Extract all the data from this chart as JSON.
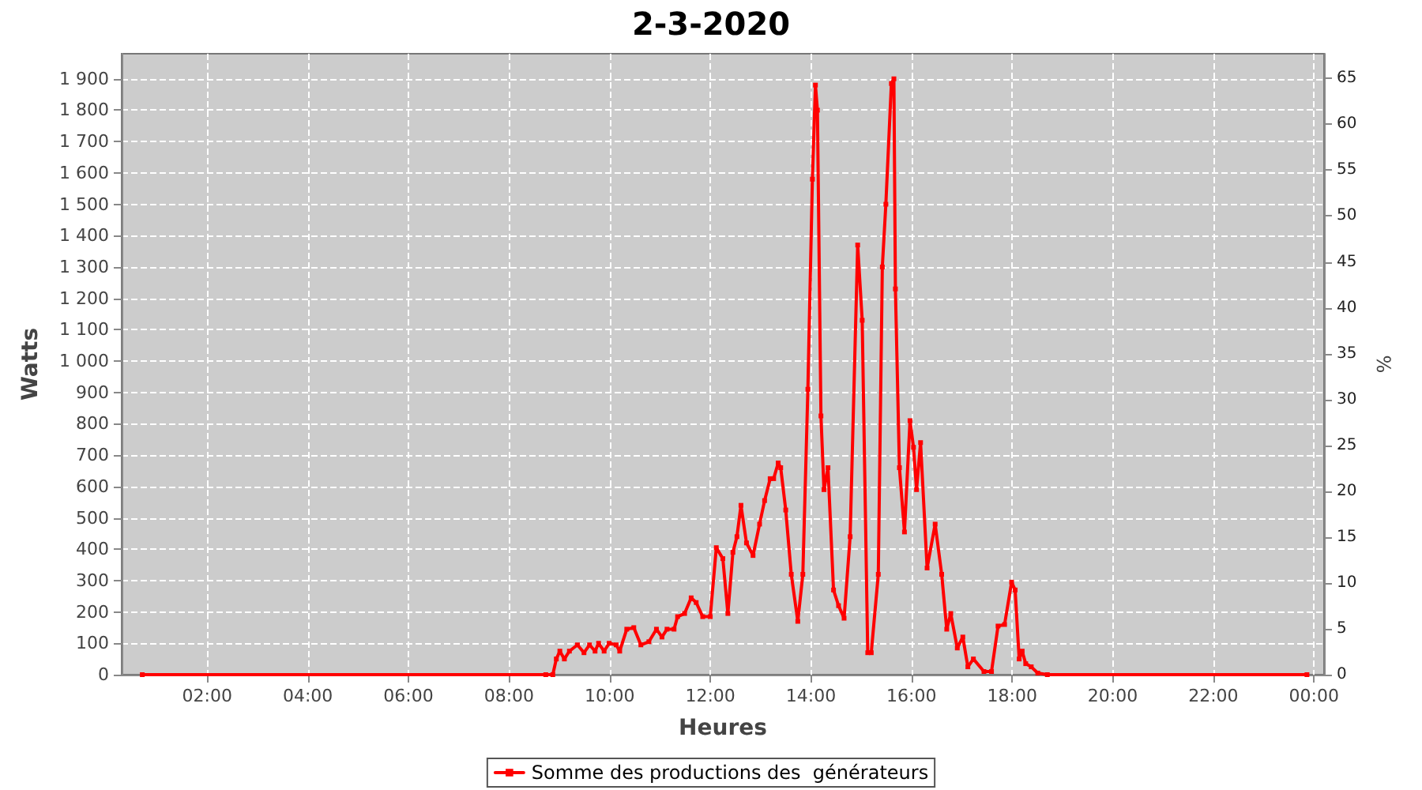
{
  "chart_data": {
    "type": "line",
    "title": "2-3-2020",
    "xlabel": "Heures",
    "ylabel": "Watts",
    "y2label": "%",
    "xlim": [
      0.3,
      24.2
    ],
    "xticks": [
      {
        "value": 2,
        "label": "02:00"
      },
      {
        "value": 4,
        "label": "04:00"
      },
      {
        "value": 6,
        "label": "06:00"
      },
      {
        "value": 8,
        "label": "08:00"
      },
      {
        "value": 10,
        "label": "10:00"
      },
      {
        "value": 12,
        "label": "12:00"
      },
      {
        "value": 14,
        "label": "14:00"
      },
      {
        "value": 16,
        "label": "16:00"
      },
      {
        "value": 18,
        "label": "18:00"
      },
      {
        "value": 20,
        "label": "20:00"
      },
      {
        "value": 22,
        "label": "22:00"
      },
      {
        "value": 24,
        "label": "00:00"
      }
    ],
    "ylim": [
      0,
      1980
    ],
    "yticks": [
      0,
      100,
      200,
      300,
      400,
      500,
      600,
      700,
      800,
      900,
      {
        "value": 1000,
        "label": "1 000"
      },
      {
        "value": 1100,
        "label": "1 100"
      },
      {
        "value": 1200,
        "label": "1 200"
      },
      {
        "value": 1300,
        "label": "1 300"
      },
      {
        "value": 1400,
        "label": "1 400"
      },
      {
        "value": 1500,
        "label": "1 500"
      },
      {
        "value": 1600,
        "label": "1 600"
      },
      {
        "value": 1700,
        "label": "1 700"
      },
      {
        "value": 1800,
        "label": "1 800"
      },
      {
        "value": 1900,
        "label": "1 900"
      }
    ],
    "y2lim": [
      0,
      67.7
    ],
    "y2ticks": [
      0,
      5,
      10,
      15,
      20,
      25,
      30,
      35,
      40,
      45,
      50,
      55,
      60,
      65
    ],
    "grid": true,
    "legend": "bottom",
    "marker": "square",
    "line_style": "solid",
    "series": [
      {
        "name": "Somme des productions des  générateurs",
        "color": "#ff0000",
        "x": [
          0.71,
          8.73,
          8.87,
          8.94,
          9.01,
          9.1,
          9.2,
          9.36,
          9.49,
          9.6,
          9.71,
          9.78,
          9.89,
          9.99,
          10.13,
          10.2,
          10.34,
          10.48,
          10.62,
          10.78,
          10.93,
          11.04,
          11.14,
          11.28,
          11.35,
          11.49,
          11.62,
          11.72,
          11.85,
          12.0,
          12.12,
          12.25,
          12.35,
          12.45,
          12.53,
          12.61,
          12.72,
          12.85,
          12.98,
          13.08,
          13.19,
          13.26,
          13.35,
          13.4,
          13.5,
          13.61,
          13.74,
          13.84,
          13.94,
          14.03,
          14.09,
          14.13,
          14.2,
          14.26,
          14.34,
          14.45,
          14.55,
          14.66,
          14.78,
          14.93,
          15.02,
          15.13,
          15.2,
          15.34,
          15.42,
          15.49,
          15.6,
          15.65,
          15.68,
          15.76,
          15.86,
          15.97,
          16.04,
          16.1,
          16.18,
          16.31,
          16.47,
          16.6,
          16.7,
          16.78,
          16.91,
          17.02,
          17.12,
          17.23,
          17.44,
          17.59,
          17.72,
          17.85,
          17.99,
          18.06,
          18.14,
          18.2,
          18.27,
          18.38,
          18.51,
          18.7,
          23.86
        ],
        "values": [
          0,
          0,
          0,
          50,
          75,
          50,
          75,
          95,
          70,
          95,
          75,
          100,
          75,
          100,
          95,
          75,
          145,
          150,
          95,
          105,
          145,
          120,
          145,
          145,
          185,
          195,
          245,
          230,
          185,
          185,
          405,
          370,
          195,
          390,
          440,
          540,
          420,
          380,
          480,
          555,
          625,
          625,
          675,
          660,
          525,
          320,
          170,
          320,
          910,
          1580,
          1880,
          1800,
          825,
          590,
          660,
          270,
          220,
          180,
          440,
          1370,
          1130,
          70,
          70,
          320,
          1300,
          1500,
          1885,
          1900,
          1230,
          660,
          455,
          810,
          725,
          590,
          740,
          340,
          480,
          320,
          145,
          195,
          85,
          120,
          25,
          50,
          10,
          10,
          155,
          160,
          295,
          270,
          50,
          75,
          35,
          25,
          5,
          0,
          0
        ]
      }
    ]
  }
}
